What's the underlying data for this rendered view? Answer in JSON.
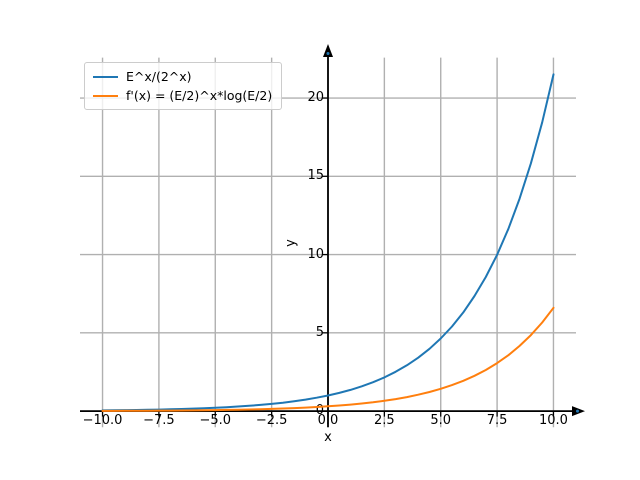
{
  "figure": {
    "background": "#ffffff"
  },
  "chart_data": {
    "type": "line",
    "title": "",
    "xlabel": "x",
    "ylabel": "y",
    "xlim": [
      -10,
      10
    ],
    "ylim": [
      0,
      22.6
    ],
    "grid": true,
    "grid_color": "#b0b0b0",
    "axis_color": "#000000",
    "legend_position": "upper left",
    "x_ticks": [
      -10,
      -7.5,
      -5,
      -2.5,
      0,
      2.5,
      5,
      7.5,
      10
    ],
    "x_tick_labels": [
      "−10.0",
      "−7.5",
      "−5.0",
      "−2.5",
      "0.0",
      "2.5",
      "5.0",
      "7.5",
      "10.0"
    ],
    "y_ticks": [
      0,
      5,
      10,
      15,
      20
    ],
    "y_tick_labels": [
      "0",
      "5",
      "10",
      "15",
      "20"
    ],
    "x": [
      -10,
      -9.5,
      -9,
      -8.5,
      -8,
      -7.5,
      -7,
      -6.5,
      -6,
      -5.5,
      -5,
      -4.5,
      -4,
      -3.5,
      -3,
      -2.5,
      -2,
      -1.5,
      -1,
      -0.5,
      0,
      0.5,
      1,
      1.5,
      2,
      2.5,
      3,
      3.5,
      4,
      4.5,
      5,
      5.5,
      6,
      6.5,
      7,
      7.5,
      8,
      8.5,
      9,
      9.5,
      10
    ],
    "series": [
      {
        "name": "E^x/(2^x)",
        "color": "#1f77b4",
        "values": [
          0.0465,
          0.0542,
          0.0631,
          0.0736,
          0.0858,
          0.1001,
          0.1167,
          0.136,
          0.1586,
          0.1849,
          0.2155,
          0.2513,
          0.293,
          0.3416,
          0.3983,
          0.4643,
          0.5414,
          0.6312,
          0.7358,
          0.8578,
          1.0,
          1.1658,
          1.3591,
          1.5843,
          1.8471,
          2.1535,
          2.5108,
          2.9273,
          3.4128,
          3.9792,
          4.6393,
          5.4089,
          6.3063,
          7.3518,
          8.568,
          9.9885,
          11.6447,
          13.5763,
          15.8284,
          18.451,
          21.5098
        ]
      },
      {
        "name": "f'(x) = (E/2)^x*log(E/2)",
        "color": "#ff7f0e",
        "values": [
          0.0143,
          0.0166,
          0.0194,
          0.0226,
          0.0263,
          0.0307,
          0.0358,
          0.0417,
          0.0487,
          0.0567,
          0.0661,
          0.0771,
          0.0899,
          0.1048,
          0.1222,
          0.1425,
          0.1661,
          0.1937,
          0.2258,
          0.2632,
          0.3069,
          0.3577,
          0.4171,
          0.4862,
          0.5668,
          0.6608,
          0.7705,
          0.8983,
          1.0472,
          1.221,
          1.4236,
          1.6597,
          1.9351,
          2.2559,
          2.6291,
          3.065,
          3.5732,
          4.1659,
          4.8569,
          5.6617,
          6.6004
        ]
      }
    ]
  }
}
